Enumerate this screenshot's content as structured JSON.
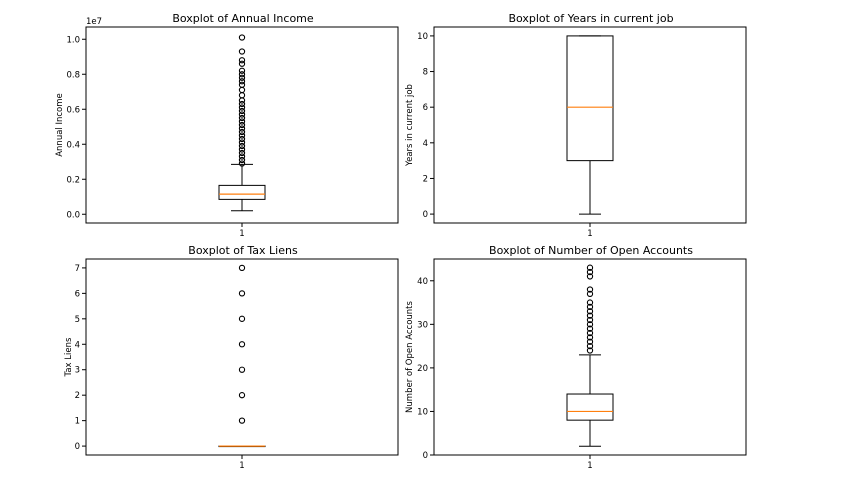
{
  "chart_data": [
    {
      "type": "boxplot",
      "title": "Boxplot of Annual Income",
      "xlabel": "",
      "ylabel": "Annual Income",
      "x_tick_label": "1",
      "y_multiplier_label": "1e7",
      "ylim": [
        -0.05,
        1.07
      ],
      "yticks": [
        0.0,
        0.2,
        0.4,
        0.6,
        0.8,
        1.0
      ],
      "ytick_labels": [
        "0.0",
        "0.2",
        "0.4",
        "0.6",
        "0.8",
        "1.0"
      ],
      "box": {
        "whisker_low": 0.02,
        "q1": 0.085,
        "median": 0.115,
        "q3": 0.165,
        "whisker_high": 0.285
      },
      "outliers": [
        0.29,
        0.31,
        0.33,
        0.35,
        0.37,
        0.39,
        0.41,
        0.43,
        0.45,
        0.47,
        0.49,
        0.51,
        0.53,
        0.55,
        0.57,
        0.59,
        0.61,
        0.63,
        0.65,
        0.68,
        0.71,
        0.74,
        0.76,
        0.78,
        0.8,
        0.82,
        0.86,
        0.88,
        0.93,
        1.01
      ]
    },
    {
      "type": "boxplot",
      "title": "Boxplot of Years in current job",
      "xlabel": "",
      "ylabel": "Years in current job",
      "x_tick_label": "1",
      "ylim": [
        -0.5,
        10.5
      ],
      "yticks": [
        0,
        2,
        4,
        6,
        8,
        10
      ],
      "ytick_labels": [
        "0",
        "2",
        "4",
        "6",
        "8",
        "10"
      ],
      "box": {
        "whisker_low": 0,
        "q1": 3,
        "median": 6,
        "q3": 10,
        "whisker_high": 10
      },
      "outliers": []
    },
    {
      "type": "boxplot",
      "title": "Boxplot of Tax Liens",
      "xlabel": "",
      "ylabel": "Tax Liens",
      "x_tick_label": "1",
      "ylim": [
        -0.35,
        7.35
      ],
      "yticks": [
        0,
        1,
        2,
        3,
        4,
        5,
        6,
        7
      ],
      "ytick_labels": [
        "0",
        "1",
        "2",
        "3",
        "4",
        "5",
        "6",
        "7"
      ],
      "box": {
        "whisker_low": 0,
        "q1": 0,
        "median": 0,
        "q3": 0,
        "whisker_high": 0
      },
      "outliers": [
        1,
        2,
        3,
        4,
        5,
        6,
        7
      ]
    },
    {
      "type": "boxplot",
      "title": "Boxplot of Number of Open Accounts",
      "xlabel": "",
      "ylabel": "Number of Open Accounts",
      "x_tick_label": "1",
      "ylim": [
        0,
        45
      ],
      "yticks": [
        0,
        10,
        20,
        30,
        40
      ],
      "ytick_labels": [
        "0",
        "10",
        "20",
        "30",
        "40"
      ],
      "box": {
        "whisker_low": 2,
        "q1": 8,
        "median": 10,
        "q3": 14,
        "whisker_high": 23
      },
      "outliers": [
        24,
        25,
        26,
        27,
        28,
        29,
        30,
        31,
        32,
        33,
        34,
        35,
        37,
        38,
        41,
        42,
        43
      ]
    }
  ],
  "colors": {
    "box": "#000000",
    "median": "#ff7f0e",
    "background": "#ffffff"
  }
}
